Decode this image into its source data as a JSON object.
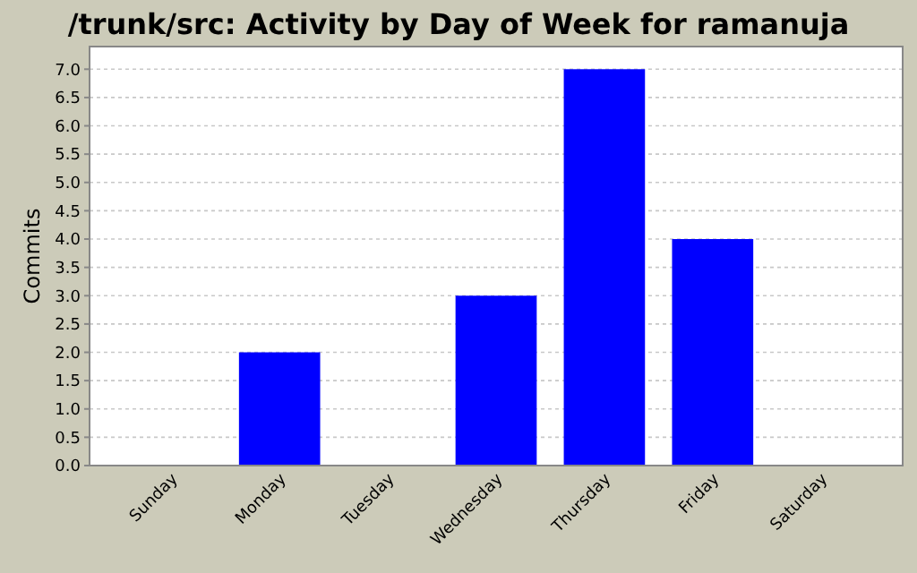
{
  "chart_data": {
    "type": "bar",
    "title": "/trunk/src: Activity by Day of Week for ramanuja",
    "ylabel": "Commits",
    "categories": [
      "Sunday",
      "Monday",
      "Tuesday",
      "Wednesday",
      "Thursday",
      "Friday",
      "Saturday"
    ],
    "values": [
      0,
      2,
      0,
      3,
      7,
      4,
      0
    ],
    "color": "#0000ff",
    "ylim": [
      0,
      7.4
    ],
    "yticks": [
      {
        "value": 0,
        "label": "0.0"
      },
      {
        "value": 0.5,
        "label": "0.5"
      },
      {
        "value": 1,
        "label": "1.0"
      },
      {
        "value": 1.5,
        "label": "1.5"
      },
      {
        "value": 2,
        "label": "2.0"
      },
      {
        "value": 2.5,
        "label": "2.5"
      },
      {
        "value": 3,
        "label": "3.0"
      },
      {
        "value": 3.5,
        "label": "3.5"
      },
      {
        "value": 4,
        "label": "4.0"
      },
      {
        "value": 4.5,
        "label": "4.5"
      },
      {
        "value": 5,
        "label": "5.0"
      },
      {
        "value": 5.5,
        "label": "5.5"
      },
      {
        "value": 6,
        "label": "6.0"
      },
      {
        "value": 6.5,
        "label": "6.5"
      },
      {
        "value": 7,
        "label": "7.0"
      }
    ],
    "grid": "y"
  }
}
